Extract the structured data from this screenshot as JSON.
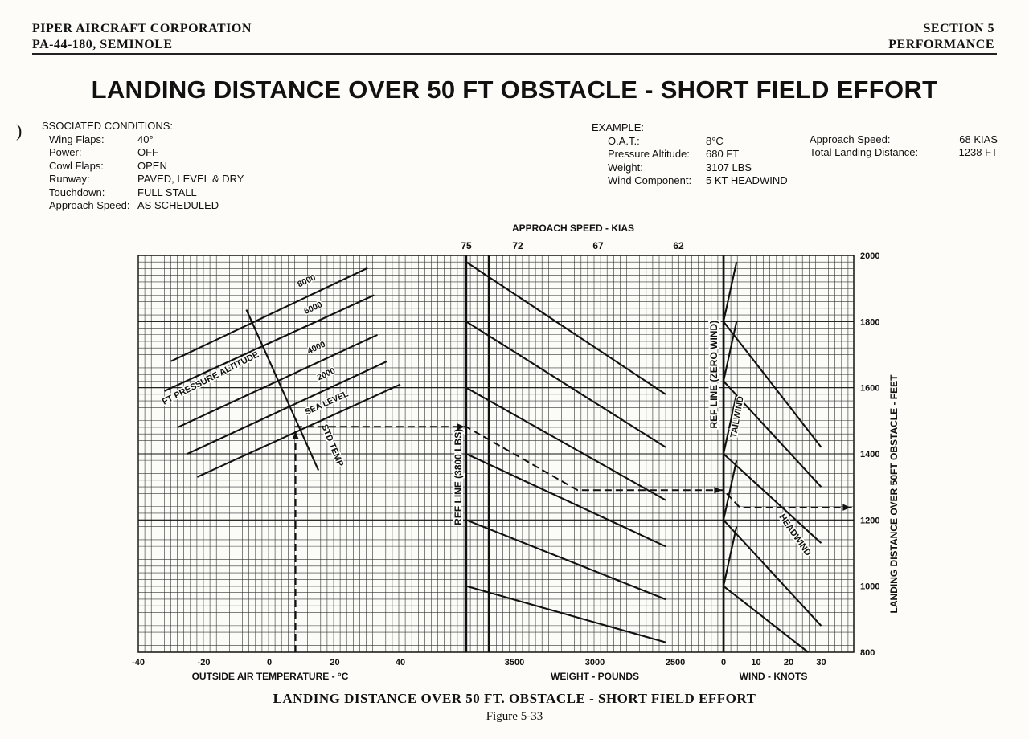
{
  "header": {
    "company": "PIPER AIRCRAFT CORPORATION",
    "model": "PA-44-180, SEMINOLE",
    "section": "SECTION 5",
    "section_name": "PERFORMANCE"
  },
  "title": "LANDING DISTANCE OVER 50 FT OBSTACLE - SHORT FIELD EFFORT",
  "margin_mark": ")",
  "conditions": {
    "heading": "SSOCIATED CONDITIONS:",
    "items": [
      {
        "key": "Wing Flaps:",
        "value": "40°"
      },
      {
        "key": "Power:",
        "value": "OFF"
      },
      {
        "key": "Cowl Flaps:",
        "value": "OPEN"
      },
      {
        "key": "Runway:",
        "value": "PAVED, LEVEL & DRY"
      },
      {
        "key": "Touchdown:",
        "value": "FULL STALL"
      },
      {
        "key": "Approach Speed:",
        "value": "AS SCHEDULED"
      }
    ]
  },
  "example": {
    "heading": "EXAMPLE:",
    "items": [
      {
        "key": "O.A.T.:",
        "value": "8°C"
      },
      {
        "key": "Pressure Altitude:",
        "value": "680 FT"
      },
      {
        "key": "Weight:",
        "value": "3107 LBS"
      },
      {
        "key": "Wind Component:",
        "value": "5 KT HEADWIND"
      }
    ],
    "results": [
      {
        "key": "Approach Speed:",
        "value": "68 KIAS"
      },
      {
        "key": "Total Landing Distance:",
        "value": "1238 FT"
      }
    ]
  },
  "chart_data": {
    "type": "line",
    "title": "LANDING DISTANCE OVER 50 FT OBSTACLE - SHORT FIELD EFFORT",
    "grid": true,
    "y_axis": {
      "label": "LANDING DISTANCE OVER 50FT OBSTACLE - FEET",
      "range": [
        800,
        2000
      ],
      "ticks": [
        800,
        1000,
        1200,
        1400,
        1600,
        1800,
        2000
      ]
    },
    "panels": [
      {
        "name": "temperature",
        "xlabel": "OUTSIDE AIR TEMPERATURE - °C",
        "range": [
          -40,
          40
        ],
        "ticks": [
          -40,
          -20,
          0,
          20,
          40
        ],
        "tick_labels": [
          "-40",
          "-20",
          "0",
          "20",
          "40"
        ],
        "axis_caption": "FT PRESSURE ALTITUDE",
        "std_temp_label": "STD TEMP",
        "std_temp_line": [
          {
            "x": -7,
            "y": 1836
          },
          {
            "x": 15,
            "y": 1350
          }
        ],
        "series": [
          {
            "name": "8000",
            "points": [
              {
                "x": -30,
                "y": 1680
              },
              {
                "x": 30,
                "y": 1962
              }
            ]
          },
          {
            "name": "6000",
            "points": [
              {
                "x": -32,
                "y": 1590
              },
              {
                "x": 32,
                "y": 1880
              }
            ]
          },
          {
            "name": "4000",
            "points": [
              {
                "x": -28,
                "y": 1480
              },
              {
                "x": 33,
                "y": 1760
              }
            ]
          },
          {
            "name": "2000",
            "points": [
              {
                "x": -25,
                "y": 1400
              },
              {
                "x": 36,
                "y": 1680
              }
            ]
          },
          {
            "name": "SEA LEVEL",
            "points": [
              {
                "x": -22,
                "y": 1330
              },
              {
                "x": 40,
                "y": 1610
              }
            ]
          }
        ]
      },
      {
        "name": "weight",
        "xlabel": "WEIGHT - POUNDS",
        "range": [
          3800,
          2400
        ],
        "ticks": [
          3500,
          3000,
          2500
        ],
        "tick_labels": [
          "3500",
          "3000",
          "2500"
        ],
        "ref_line_label": "REF LINE  (3800 LBS)",
        "approach_speed_label": "APPROACH SPEED - KIAS",
        "approach_speeds": [
          {
            "label": "75",
            "x": 3800
          },
          {
            "label": "72",
            "x": 3500
          },
          {
            "label": "67",
            "x": 3000
          },
          {
            "label": "62",
            "x": 2500
          }
        ],
        "series": [
          {
            "points": [
              {
                "x": 3800,
                "y": 1980
              },
              {
                "x": 2560,
                "y": 1580
              }
            ]
          },
          {
            "points": [
              {
                "x": 3800,
                "y": 1800
              },
              {
                "x": 2560,
                "y": 1420
              }
            ]
          },
          {
            "points": [
              {
                "x": 3800,
                "y": 1600
              },
              {
                "x": 2560,
                "y": 1260
              }
            ]
          },
          {
            "points": [
              {
                "x": 3800,
                "y": 1400
              },
              {
                "x": 2560,
                "y": 1120
              }
            ]
          },
          {
            "points": [
              {
                "x": 3800,
                "y": 1200
              },
              {
                "x": 2560,
                "y": 960
              }
            ]
          },
          {
            "points": [
              {
                "x": 3800,
                "y": 1000
              },
              {
                "x": 2560,
                "y": 830
              }
            ]
          }
        ]
      },
      {
        "name": "wind",
        "xlabel": "WIND - KNOTS",
        "range": [
          0,
          40
        ],
        "ticks": [
          0,
          10,
          20,
          30
        ],
        "tick_labels": [
          "0",
          "10",
          "20",
          "30"
        ],
        "ref_line_label": "REF LINE  (ZERO WIND)",
        "tailwind_label": "TAILWIND",
        "headwind_label": "HEADWIND",
        "series": [
          {
            "points": [
              {
                "x": 0,
                "y": 1800
              },
              {
                "x": 30,
                "y": 1420
              }
            ]
          },
          {
            "points": [
              {
                "x": 0,
                "y": 1620
              },
              {
                "x": 30,
                "y": 1300
              }
            ]
          },
          {
            "points": [
              {
                "x": 0,
                "y": 1400
              },
              {
                "x": 30,
                "y": 1130
              }
            ]
          },
          {
            "points": [
              {
                "x": 0,
                "y": 1200
              },
              {
                "x": 30,
                "y": 880
              }
            ]
          },
          {
            "points": [
              {
                "x": 0,
                "y": 1000
              },
              {
                "x": 26,
                "y": 800
              }
            ]
          }
        ],
        "tailwind_series": [
          {
            "points": [
              {
                "x": 0,
                "y": 1800
              },
              {
                "x": 4,
                "y": 1980
              }
            ]
          },
          {
            "points": [
              {
                "x": 0,
                "y": 1620
              },
              {
                "x": 4,
                "y": 1800
              }
            ]
          },
          {
            "points": [
              {
                "x": 0,
                "y": 1400
              },
              {
                "x": 4,
                "y": 1580
              }
            ]
          },
          {
            "points": [
              {
                "x": 0,
                "y": 1200
              },
              {
                "x": 4,
                "y": 1380
              }
            ]
          },
          {
            "points": [
              {
                "x": 0,
                "y": 1000
              },
              {
                "x": 4,
                "y": 1180
              }
            ]
          }
        ]
      }
    ],
    "example_path": [
      {
        "panel": "temperature",
        "x": 8,
        "y": 800
      },
      {
        "panel": "temperature",
        "x": 8,
        "y": 1482
      },
      {
        "panel": "weight",
        "x": 3800,
        "y": 1482
      },
      {
        "panel": "weight",
        "x": 3107,
        "y": 1290
      },
      {
        "panel": "wind",
        "x": 0,
        "y": 1290
      },
      {
        "panel": "wind",
        "x": 5,
        "y": 1238
      },
      {
        "panel": "wind",
        "x": 40,
        "y": 1238
      }
    ]
  },
  "caption": "LANDING DISTANCE OVER 50 FT. OBSTACLE - SHORT FIELD EFFORT",
  "figure_number": "Figure 5-33"
}
